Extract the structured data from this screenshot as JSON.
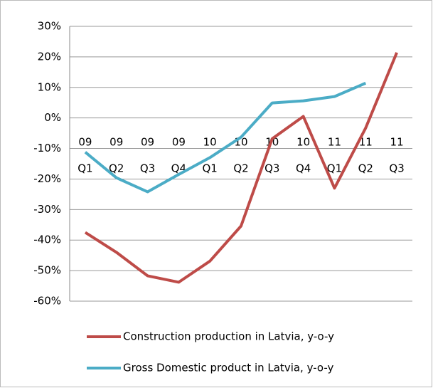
{
  "chart_data": {
    "type": "line",
    "categories": [
      [
        "09",
        "Q1"
      ],
      [
        "09",
        "Q2"
      ],
      [
        "09",
        "Q3"
      ],
      [
        "09",
        "Q4"
      ],
      [
        "10",
        "Q1"
      ],
      [
        "10",
        "Q2"
      ],
      [
        "10",
        "Q3"
      ],
      [
        "10",
        "Q4"
      ],
      [
        "11",
        "Q1"
      ],
      [
        "11",
        "Q2"
      ],
      [
        "11",
        "Q3"
      ]
    ],
    "series": [
      {
        "name": "Construction production in Latvia, y-o-y",
        "color": "#be4b48",
        "values": [
          -37.5,
          -44,
          -51.7,
          -53.8,
          -46.9,
          -35.4,
          -6.8,
          0.5,
          -23,
          -3.3,
          21.4
        ]
      },
      {
        "name": "Gross Domestic product in Latvia, y-o-y",
        "color": "#4bacc6",
        "values": [
          -11.2,
          -19.6,
          -24.2,
          -18.5,
          -13,
          -6.3,
          4.9,
          5.6,
          7,
          11.4,
          null
        ]
      }
    ],
    "ylim": [
      -60,
      30
    ],
    "yticks": [
      {
        "value": -60,
        "label": "-60%"
      },
      {
        "value": -50,
        "label": "-50%"
      },
      {
        "value": -40,
        "label": "-40%"
      },
      {
        "value": -30,
        "label": "-30%"
      },
      {
        "value": -20,
        "label": "-20%"
      },
      {
        "value": -10,
        "label": "-10%"
      },
      {
        "value": 0,
        "label": "0%"
      },
      {
        "value": 10,
        "label": "10%"
      },
      {
        "value": 20,
        "label": "20%"
      },
      {
        "value": 30,
        "label": "30%"
      }
    ],
    "grid": true,
    "legend": "bottom"
  }
}
